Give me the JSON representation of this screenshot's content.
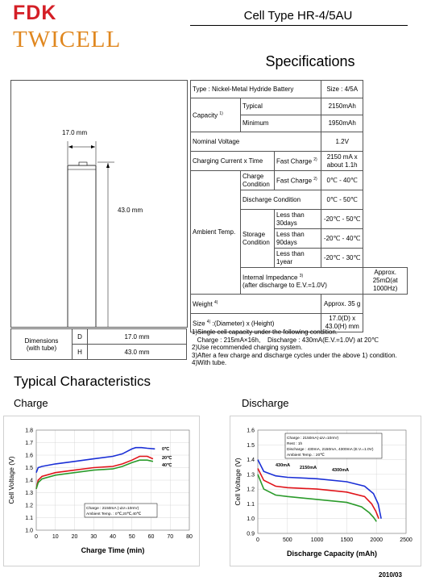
{
  "header": {
    "logo_top": "FDK",
    "logo_bottom": "TWICELL",
    "cell_type": "Cell Type HR-4/5AU",
    "spec_title": "Specifications"
  },
  "drawing": {
    "width_label": "17.0 mm",
    "height_label": "43.0 mm"
  },
  "dimensions": {
    "label": "Dimensions",
    "sublabel": "(with tube)",
    "rows": [
      {
        "key": "D",
        "value": "17.0 mm"
      },
      {
        "key": "H",
        "value": "43.0 mm"
      }
    ]
  },
  "spec": {
    "type_label": "Type : Nickel-Metal Hydride Battery",
    "size_label": "Size : 4/5A",
    "capacity": "Capacity",
    "capacity_note": "1)",
    "typical": "Typical",
    "typical_value": "2150mAh",
    "minimum": "Minimum",
    "minimum_value": "1950mAh",
    "nominal_voltage": "Nominal Voltage",
    "nominal_voltage_value": "1.2V",
    "charging_current": "Charging Current x Time",
    "fast_charge": "Fast Charge",
    "fast_charge_note": "2)",
    "charging_current_value": "2150 mA x about 1.1h",
    "ambient_temp": "Ambient Temp.",
    "charge_condition_1": "Charge",
    "charge_condition_2": "Condition",
    "fast_charge_temp": "0℃ - 40℃",
    "discharge_condition": "Discharge Condition",
    "discharge_temp": "0℃ - 50℃",
    "storage_condition_1": "Storage",
    "storage_condition_2": "Condition",
    "storage_rows": [
      {
        "l1": "Less than",
        "l2": "30days",
        "value": "-20℃ - 50℃"
      },
      {
        "l1": "Less than",
        "l2": "90days",
        "value": "-20℃ - 40℃"
      },
      {
        "l1": "Less than",
        "l2": "1year",
        "value": "-20℃ - 30℃"
      }
    ],
    "impedance_1": "Internal Impedance",
    "impedance_note": "3)",
    "impedance_2": "(after discharge to E.V.=1.0V)",
    "impedance_value": "Approx. 25mΩ(at 1000Hz)",
    "weight": "Weight",
    "weight_note": "4)",
    "weight_value": "Approx. 35 g",
    "size": "Size",
    "size_note": "4)",
    "size_desc": ":(Diameter) x (Height)",
    "size_value": "17.0(D) x 43.0(H) mm"
  },
  "notes": [
    "1)Single cell capacity under the following condition.",
    "   Charge : 215mA×16h,    Discharge : 430mA(E.V.=1.0V) at 20℃",
    "2)Use recommended charging system.",
    "3)After a few charge and discharge cycles under the above 1) condition.",
    "4)With tube."
  ],
  "typical_characteristics": "Typical Characteristics",
  "charge_title": "Charge",
  "discharge_title": "Discharge",
  "footer_date": "2010/03",
  "chart_data": [
    {
      "type": "line",
      "title": "Charge",
      "xlabel": "Charge Time (min)",
      "ylabel": "Cell Voltage (V)",
      "xlim": [
        0,
        80
      ],
      "ylim": [
        1.0,
        1.8
      ],
      "xticks": [
        "0",
        "10",
        "20",
        "30",
        "40",
        "50",
        "60",
        "70",
        "80"
      ],
      "yticks": [
        "1.0",
        "1.1",
        "1.2",
        "1.3",
        "1.4",
        "1.5",
        "1.6",
        "1.7",
        "1.8"
      ],
      "legend_box": [
        "Charge : 2150mA (-ΔV=10mV)",
        "Ambient Temp. : 0℃,20℃,40℃"
      ],
      "series": [
        {
          "name": "0℃",
          "color": "#1a2fd6",
          "x": [
            0,
            1,
            3,
            10,
            20,
            30,
            40,
            45,
            50,
            52,
            55,
            58,
            62
          ],
          "y": [
            1.46,
            1.5,
            1.51,
            1.53,
            1.55,
            1.57,
            1.59,
            1.61,
            1.65,
            1.66,
            1.66,
            1.655,
            1.65
          ]
        },
        {
          "name": "20℃",
          "color": "#e0141a",
          "x": [
            0,
            1,
            3,
            10,
            20,
            30,
            40,
            45,
            50,
            54,
            58,
            61
          ],
          "y": [
            1.33,
            1.4,
            1.43,
            1.46,
            1.48,
            1.5,
            1.51,
            1.53,
            1.56,
            1.59,
            1.59,
            1.57
          ]
        },
        {
          "name": "40℃",
          "color": "#2b9b2b",
          "x": [
            0,
            1,
            3,
            10,
            20,
            30,
            40,
            45,
            50,
            54,
            58,
            61
          ],
          "y": [
            1.33,
            1.38,
            1.41,
            1.44,
            1.46,
            1.48,
            1.49,
            1.51,
            1.54,
            1.56,
            1.56,
            1.55
          ]
        }
      ]
    },
    {
      "type": "line",
      "title": "Discharge",
      "xlabel": "Discharge Capacity (mAh)",
      "ylabel": "Cell Voltage (V)",
      "xlim": [
        0,
        2500
      ],
      "ylim": [
        0.9,
        1.6
      ],
      "xticks": [
        "0",
        "500",
        "1000",
        "1500",
        "2000",
        "2500"
      ],
      "yticks": [
        "0.9",
        "1.0",
        "1.1",
        "1.2",
        "1.3",
        "1.4",
        "1.5",
        "1.6"
      ],
      "legend_box": [
        "Charge : 2150mA(-ΔV=10mV)",
        "Rest : 1h",
        "Discharge : 430mA, 2150mA, 4300mA (E.V.=1.0V)",
        "Ambient Temp. : 20℃"
      ],
      "series": [
        {
          "name": "430mA",
          "color": "#1a2fd6",
          "x": [
            0,
            100,
            300,
            500,
            1000,
            1500,
            1800,
            1950,
            2030,
            2060,
            2080
          ],
          "y": [
            1.4,
            1.32,
            1.29,
            1.28,
            1.27,
            1.25,
            1.22,
            1.17,
            1.1,
            1.04,
            1.0
          ]
        },
        {
          "name": "2150mA",
          "color": "#e0141a",
          "x": [
            0,
            100,
            300,
            500,
            1000,
            1500,
            1800,
            1920,
            1990,
            2020,
            2040
          ],
          "y": [
            1.34,
            1.26,
            1.22,
            1.21,
            1.2,
            1.18,
            1.15,
            1.1,
            1.05,
            1.02,
            1.0
          ]
        },
        {
          "name": "4300mA",
          "color": "#2b9b2b",
          "x": [
            0,
            100,
            300,
            500,
            1000,
            1500,
            1750,
            1880,
            1950,
            1985,
            2000
          ],
          "y": [
            1.3,
            1.2,
            1.16,
            1.15,
            1.13,
            1.11,
            1.08,
            1.04,
            1.01,
            0.99,
            0.98
          ]
        }
      ]
    }
  ]
}
